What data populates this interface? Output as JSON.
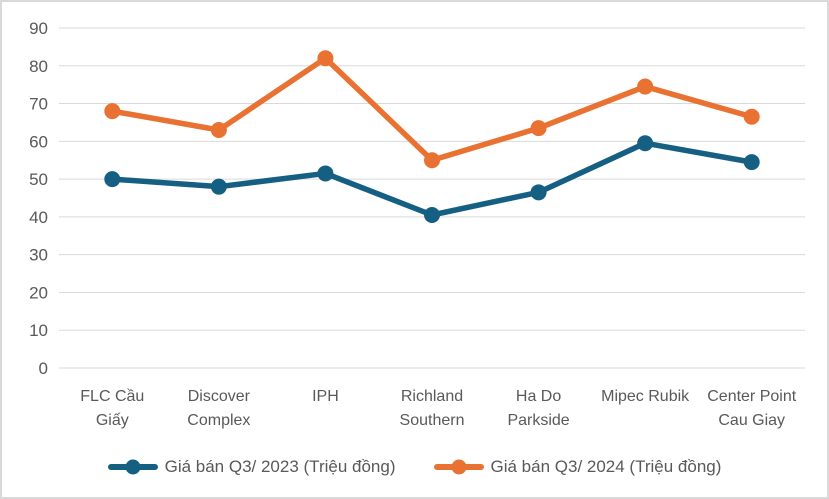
{
  "chart_data": {
    "type": "line",
    "title": "",
    "categories": [
      "FLC Cầu Giấy",
      "Discover Complex",
      "IPH",
      "Richland Southern",
      "Ha Do Parkside",
      "Mipec Rubik",
      "Center Point Cau Giay"
    ],
    "category_label_lines": [
      [
        "FLC Cầu",
        "Giấy"
      ],
      [
        "Discover",
        "Complex"
      ],
      [
        "IPH"
      ],
      [
        "Richland",
        "Southern"
      ],
      [
        "Ha Do",
        "Parkside"
      ],
      [
        "Mipec Rubik"
      ],
      [
        "Center Point",
        "Cau Giay"
      ]
    ],
    "series": [
      {
        "name": "Giá bán Q3/ 2023 (Triệu đồng)",
        "color": "#156082",
        "values": [
          50,
          48,
          51.5,
          40.5,
          46.5,
          59.5,
          54.5
        ]
      },
      {
        "name": "Giá bán Q3/ 2024 (Triệu đồng)",
        "color": "#E97132",
        "values": [
          68,
          63,
          82,
          55,
          63.5,
          74.5,
          66.5
        ]
      }
    ],
    "ylim": [
      0,
      90
    ],
    "yticks": [
      0,
      10,
      20,
      30,
      40,
      50,
      60,
      70,
      80,
      90
    ],
    "grid": true,
    "legend_position": "bottom"
  },
  "colors": {
    "gridline": "#D9D9D9",
    "axis_text": "#595959",
    "border": "#D9D9D9",
    "background": "#FFFFFF",
    "series_2023": "#156082",
    "series_2024": "#E97132"
  }
}
